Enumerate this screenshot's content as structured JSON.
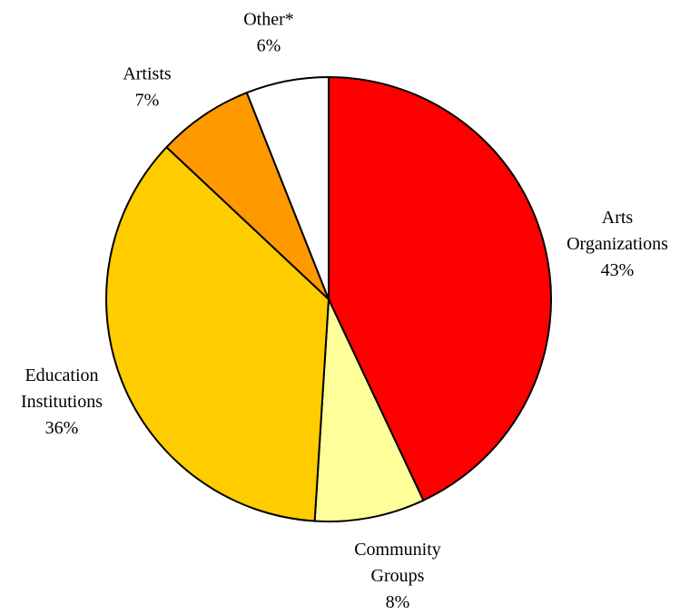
{
  "chart_data": {
    "type": "pie",
    "title": "",
    "start_angle_deg": 0,
    "direction": "clockwise",
    "slices": [
      {
        "label": [
          "Arts",
          "Organizations"
        ],
        "value": 43,
        "value_label": "43%",
        "color": "#ff0000"
      },
      {
        "label": [
          "Community",
          "Groups"
        ],
        "value": 8,
        "value_label": "8%",
        "color": "#ffff99"
      },
      {
        "label": [
          "Education",
          "Institutions"
        ],
        "value": 36,
        "value_label": "36%",
        "color": "#ffcc00"
      },
      {
        "label": [
          "Artists"
        ],
        "value": 7,
        "value_label": "7%",
        "color": "#ff9900"
      },
      {
        "label": [
          "Other*"
        ],
        "value": 6,
        "value_label": "6%",
        "color": "#ffffff"
      }
    ]
  }
}
